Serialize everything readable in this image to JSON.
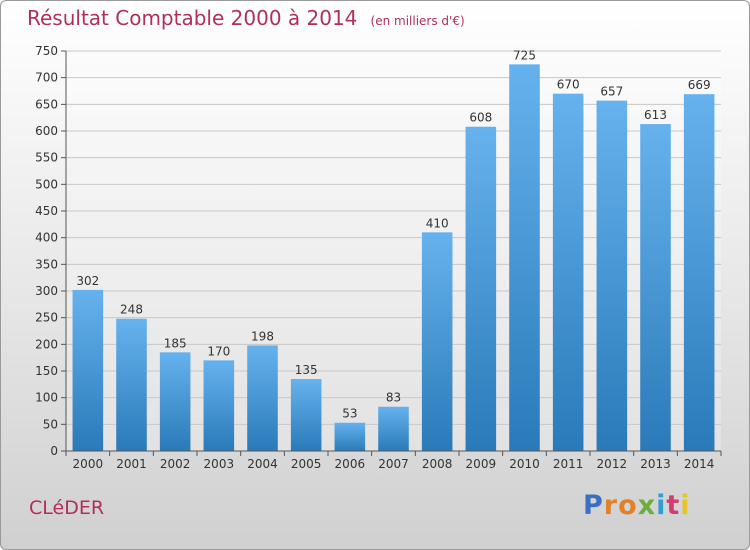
{
  "title": "Résultat Comptable 2000 à 2014",
  "unit_note": "(en milliers d'€)",
  "town": "CLéDER",
  "brand": {
    "letters": [
      "P",
      "r",
      "o",
      "x",
      "i",
      "t",
      "i"
    ],
    "colors": [
      "#3a6fc4",
      "#e0812b",
      "#e0812b",
      "#6cae3c",
      "#2f9fd8",
      "#d23c6e",
      "#e8c32a"
    ]
  },
  "colors": {
    "bar_top": "#66b2ee",
    "bar_bottom": "#2a7ab9",
    "title": "#b0305a",
    "grid": "#c8c8c8"
  },
  "chart_data": {
    "type": "bar",
    "title": "Résultat Comptable 2000 à 2014",
    "categories": [
      "2000",
      "2001",
      "2002",
      "2003",
      "2004",
      "2005",
      "2006",
      "2007",
      "2008",
      "2009",
      "2010",
      "2011",
      "2012",
      "2013",
      "2014"
    ],
    "values": [
      302,
      248,
      185,
      170,
      198,
      135,
      53,
      83,
      410,
      608,
      725,
      670,
      657,
      613,
      669
    ],
    "ylim": [
      0,
      750
    ],
    "yticks": [
      0,
      50,
      100,
      150,
      200,
      250,
      300,
      350,
      400,
      450,
      500,
      550,
      600,
      650,
      700,
      750
    ],
    "grid": true,
    "data_labels": true
  }
}
